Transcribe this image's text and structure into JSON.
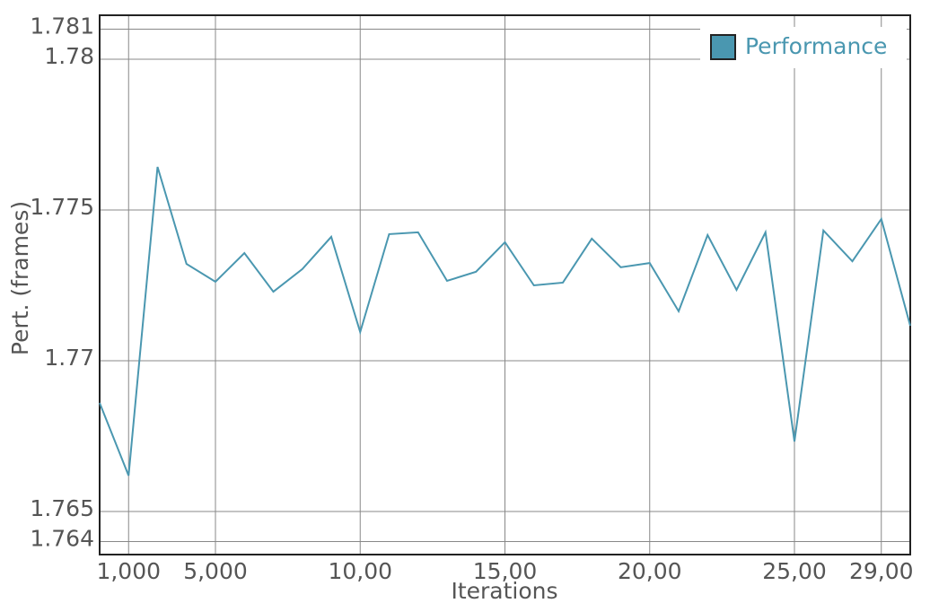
{
  "chart_data": {
    "type": "line",
    "xlabel": "Iterations",
    "ylabel": "Pert. (frames)",
    "x": [
      0,
      1,
      2,
      3,
      4,
      5,
      6,
      7,
      8,
      9,
      10,
      11,
      12,
      13,
      14,
      15,
      16,
      17,
      18,
      19,
      20,
      21,
      22,
      23,
      24,
      25,
      26,
      27,
      28
    ],
    "series": [
      {
        "name": "Performance",
        "color": "#4a97b0",
        "values": [
          1.7686,
          1.76619,
          1.77643,
          1.77321,
          1.77262,
          1.77357,
          1.77229,
          1.77304,
          1.77411,
          1.77095,
          1.7742,
          1.77426,
          1.77265,
          1.77295,
          1.77393,
          1.7725,
          1.77259,
          1.77405,
          1.7731,
          1.77324,
          1.77164,
          1.77417,
          1.77235,
          1.77426,
          1.76732,
          1.77432,
          1.7733,
          1.7747,
          1.77116
        ]
      }
    ],
    "xlim": [
      0,
      28
    ],
    "xticks": [
      {
        "value": 1,
        "label": "1,000"
      },
      {
        "value": 4,
        "label": "5,000"
      },
      {
        "value": 9,
        "label": "10,00"
      },
      {
        "value": 14,
        "label": "15,00"
      },
      {
        "value": 19,
        "label": "20,00"
      },
      {
        "value": 24,
        "label": "25,00"
      },
      {
        "value": 27,
        "label": "29,00"
      }
    ],
    "ylim": [
      1.76357,
      1.78146
    ],
    "yticks": [
      1.764,
      1.765,
      1.77,
      1.775,
      1.78,
      1.781
    ],
    "grid": true,
    "legend": "upper right"
  }
}
